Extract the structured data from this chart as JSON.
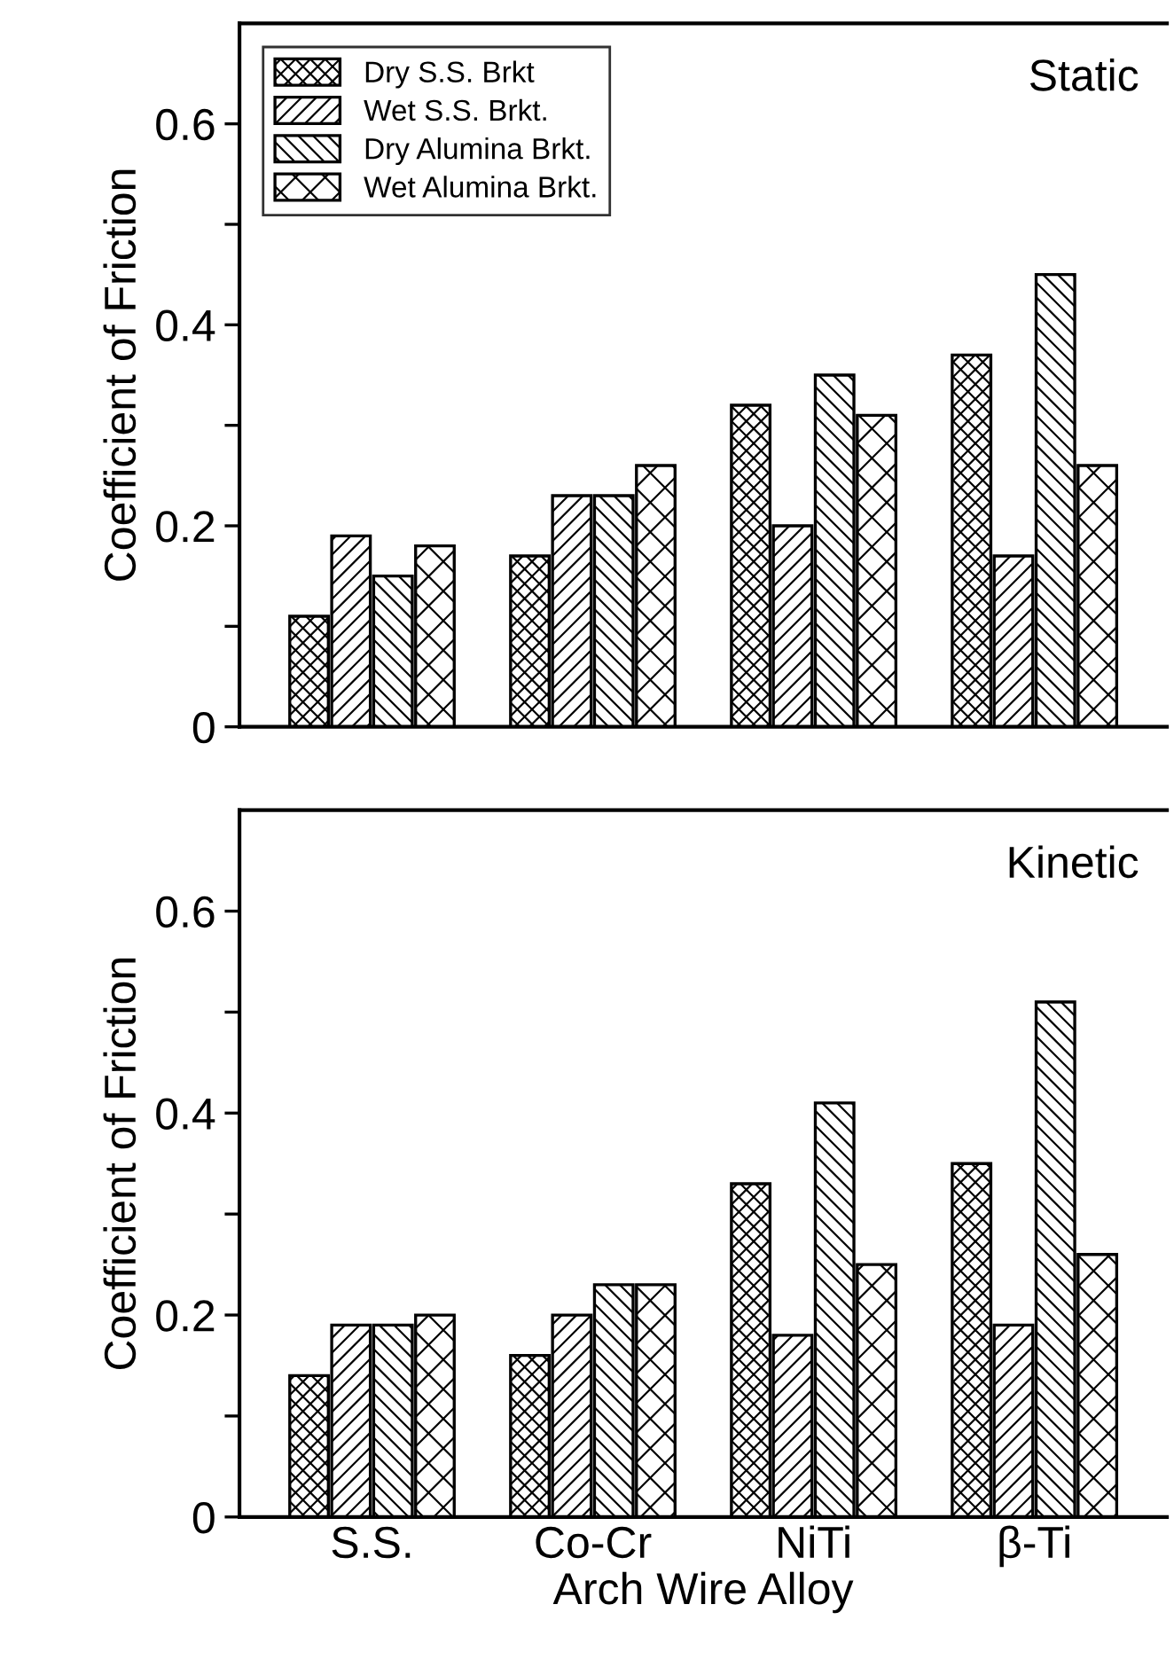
{
  "chart_data": [
    {
      "type": "bar",
      "ylabel": "Coefficient of Friction",
      "annotations": [
        "Static"
      ],
      "categories": [
        null,
        null,
        null,
        null
      ],
      "ylim": [
        0,
        0.7
      ],
      "yticks": [
        0,
        {
          "value": 0.1,
          "label": null
        },
        0.2,
        {
          "value": 0.3,
          "label": null
        },
        0.4,
        {
          "value": 0.5,
          "label": null
        },
        0.6
      ],
      "tick_labels": "y",
      "legend": "top left",
      "grid": false,
      "series": [
        {
          "name": "Dry S.S. Brkt",
          "color": "#000000",
          "values": [
            0.11,
            0.17,
            0.32,
            0.37
          ]
        },
        {
          "name": "Wet S.S. Brkt.",
          "color": "#000000",
          "values": [
            0.19,
            0.23,
            0.2,
            0.17
          ]
        },
        {
          "name": "Dry Alumina Brkt.",
          "color": "#000000",
          "values": [
            0.15,
            0.23,
            0.35,
            0.45
          ]
        },
        {
          "name": "Wet Alumina Brkt.",
          "color": "#000000",
          "values": [
            0.18,
            0.26,
            0.31,
            0.26
          ]
        }
      ]
    },
    {
      "type": "bar",
      "ylabel": "Coefficient of Friction",
      "xlabel": "Arch Wire Alloy",
      "annotations": [
        "Kinetic"
      ],
      "categories": [
        "S.S.",
        "Co-Cr",
        "NiTi",
        "β-Ti"
      ],
      "ylim": [
        0,
        0.7
      ],
      "yticks": [
        0,
        {
          "value": 0.1,
          "label": null
        },
        0.2,
        {
          "value": 0.3,
          "label": null
        },
        0.4,
        {
          "value": 0.5,
          "label": null
        },
        0.6
      ],
      "grid": false,
      "series": [
        {
          "color": "#000000",
          "values": [
            0.14,
            0.16,
            0.33,
            0.35
          ]
        },
        {
          "color": "#000000",
          "values": [
            0.19,
            0.2,
            0.18,
            0.19
          ]
        },
        {
          "color": "#000000",
          "values": [
            0.19,
            0.23,
            0.41,
            0.51
          ]
        },
        {
          "color": "#000000",
          "values": [
            0.2,
            0.23,
            0.25,
            0.26
          ]
        }
      ]
    }
  ]
}
